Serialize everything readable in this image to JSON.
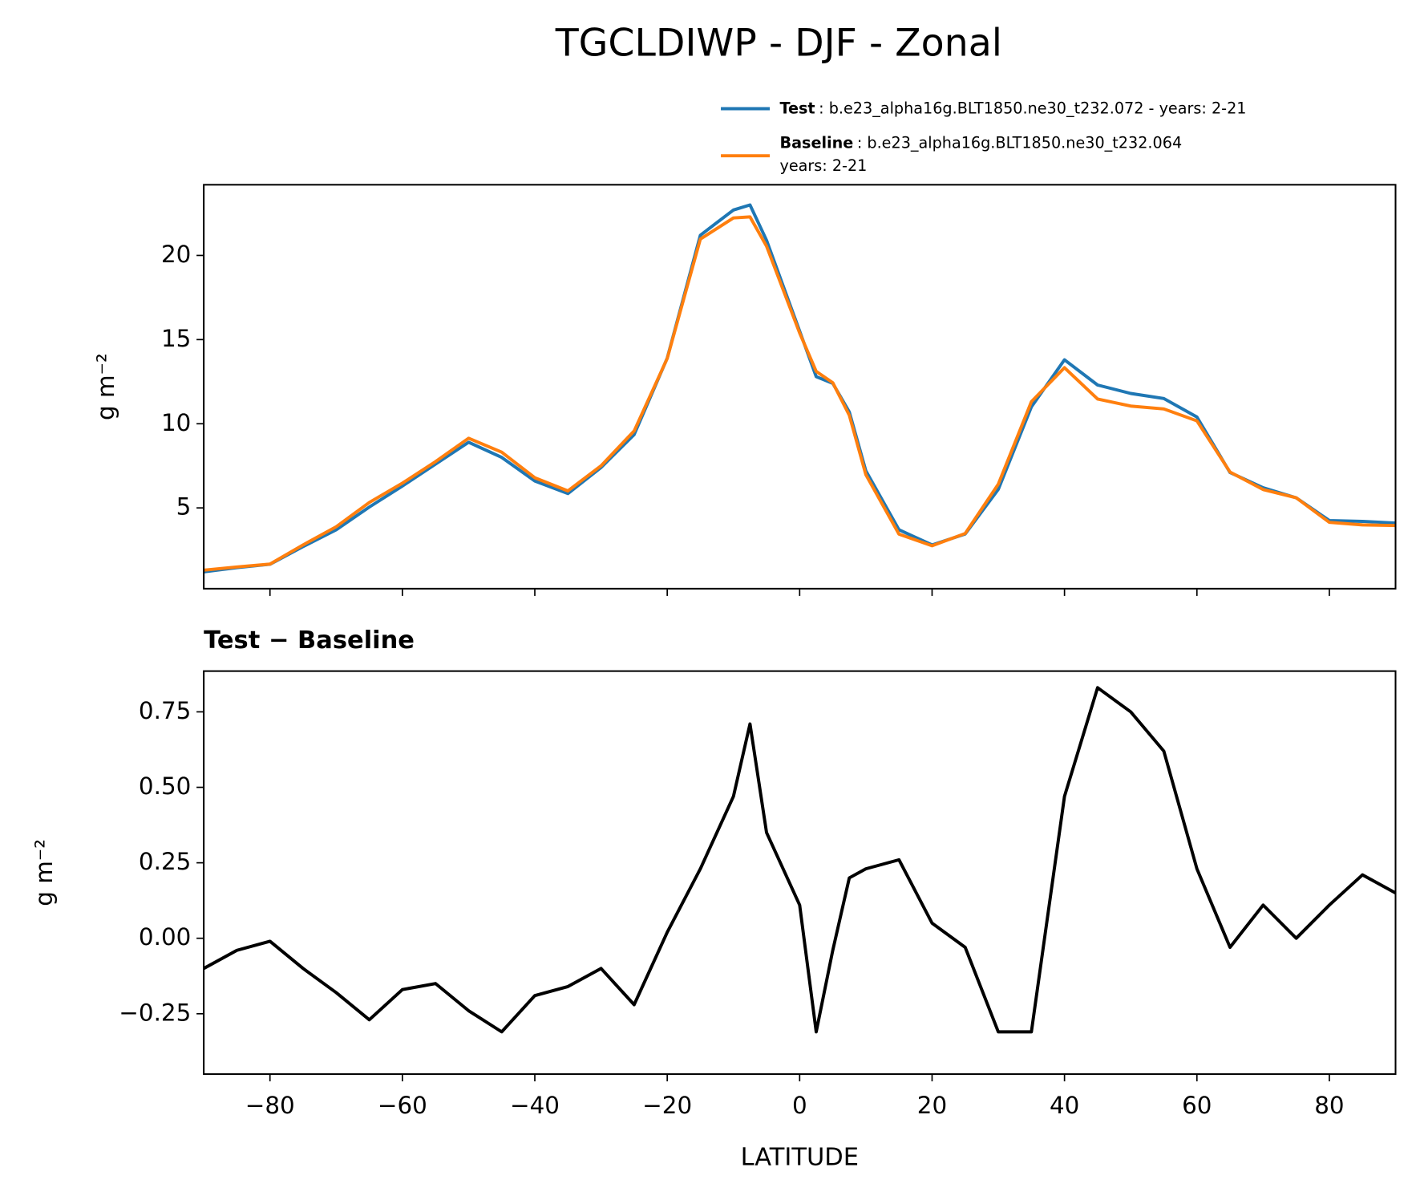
{
  "chart_data": [
    {
      "type": "line",
      "title": "TGCLDIWP - DJF - Zonal",
      "ylabel": "g m⁻²",
      "x": [
        -90,
        -85,
        -80,
        -75,
        -70,
        -65,
        -60,
        -55,
        -50,
        -45,
        -40,
        -35,
        -30,
        -25,
        -20,
        -15,
        -10,
        -7.5,
        -5,
        0,
        2.5,
        5,
        7.5,
        10,
        15,
        20,
        25,
        30,
        35,
        40,
        45,
        50,
        55,
        60,
        65,
        70,
        75,
        80,
        85,
        90
      ],
      "series": [
        {
          "name": "Test",
          "legend_text": [
            ": b.e23_alpha16g.BLT1850.ne30_t232.072 - years: 2-21"
          ],
          "color": "#1f77b4",
          "values": [
            1.2,
            1.45,
            1.65,
            2.7,
            3.7,
            5.05,
            6.3,
            7.6,
            8.9,
            8.0,
            6.6,
            5.85,
            7.4,
            9.35,
            13.9,
            21.2,
            22.7,
            23.0,
            20.9,
            15.5,
            12.8,
            12.4,
            10.7,
            7.2,
            3.7,
            2.8,
            3.45,
            6.1,
            11.0,
            13.8,
            12.3,
            11.8,
            11.5,
            10.4,
            7.1,
            6.2,
            5.6,
            4.25,
            4.2,
            4.1
          ]
        },
        {
          "name": "Baseline",
          "legend_text": [
            ": b.e23_alpha16g.BLT1850.ne30_t232.064",
            "years: 2-21"
          ],
          "color": "#ff7f0e",
          "values": [
            1.3,
            1.49,
            1.66,
            2.8,
            3.88,
            5.32,
            6.47,
            7.75,
            9.14,
            8.31,
            6.79,
            6.01,
            7.5,
            9.57,
            13.88,
            20.97,
            22.23,
            22.29,
            20.55,
            15.39,
            13.11,
            12.44,
            10.5,
            6.97,
            3.44,
            2.75,
            3.48,
            6.41,
            11.31,
            13.33,
            11.47,
            11.05,
            10.88,
            10.17,
            7.13,
            6.09,
            5.6,
            4.14,
            3.99,
            3.95
          ]
        }
      ],
      "xlim": [
        -90,
        90
      ],
      "xticks": [
        -80,
        -60,
        -40,
        -20,
        0,
        20,
        40,
        60,
        80
      ],
      "ylim": [
        0.2,
        24.2
      ],
      "yticks": [
        5,
        10,
        15,
        20
      ]
    },
    {
      "type": "line",
      "title": "Test − Baseline",
      "ylabel": "g m⁻²",
      "xlabel": "LATITUDE",
      "x": [
        -90,
        -85,
        -80,
        -75,
        -70,
        -65,
        -60,
        -55,
        -50,
        -45,
        -40,
        -35,
        -30,
        -25,
        -20,
        -15,
        -10,
        -7.5,
        -5,
        0,
        2.5,
        5,
        7.5,
        10,
        15,
        20,
        25,
        30,
        35,
        40,
        45,
        50,
        55,
        60,
        65,
        70,
        75,
        80,
        85,
        90
      ],
      "series": [
        {
          "name": "Test − Baseline",
          "color": "#000000",
          "values": [
            -0.1,
            -0.04,
            -0.01,
            -0.1,
            -0.18,
            -0.27,
            -0.17,
            -0.15,
            -0.24,
            -0.31,
            -0.19,
            -0.16,
            -0.1,
            -0.22,
            0.02,
            0.23,
            0.47,
            0.71,
            0.35,
            0.11,
            -0.31,
            -0.04,
            0.2,
            0.23,
            0.26,
            0.05,
            -0.03,
            -0.31,
            -0.31,
            0.47,
            0.83,
            0.75,
            0.62,
            0.23,
            -0.03,
            0.11,
            0.0,
            0.11,
            0.21,
            0.15
          ]
        }
      ],
      "xlim": [
        -90,
        90
      ],
      "xticks": [
        {
          "value": -80,
          "label": "−80"
        },
        {
          "value": -60,
          "label": "−60"
        },
        {
          "value": -40,
          "label": "−40"
        },
        {
          "value": -20,
          "label": "−20"
        },
        0,
        20,
        40,
        60,
        80
      ],
      "ylim": [
        -0.45,
        0.885
      ],
      "yticks": [
        {
          "value": -0.25,
          "label": "−0.25"
        },
        {
          "value": 0,
          "label": "0.00"
        },
        0.25,
        {
          "value": 0.5,
          "label": "0.50"
        },
        0.75
      ]
    }
  ]
}
